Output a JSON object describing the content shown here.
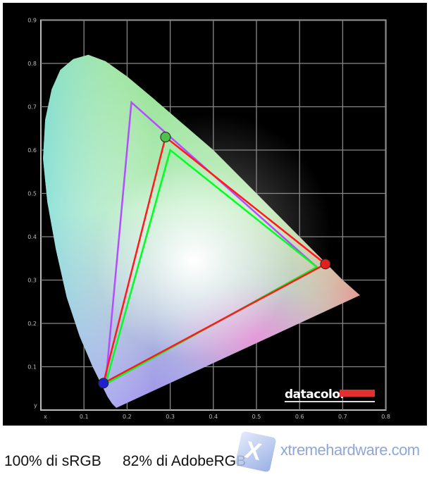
{
  "chart_data": {
    "type": "scatter",
    "title": "",
    "xlabel": "x",
    "ylabel": "y",
    "xlim": [
      0,
      0.8
    ],
    "ylim": [
      0,
      0.9
    ],
    "x_ticks": [
      "0.1",
      "0.2",
      "0.3",
      "0.4",
      "0.5",
      "0.6",
      "0.7",
      "0.8"
    ],
    "y_ticks": [
      "0.1",
      "0.2",
      "0.3",
      "0.4",
      "0.5",
      "0.6",
      "0.7",
      "0.8",
      "0.9"
    ],
    "grid": true,
    "background": "#000000",
    "series": [
      {
        "color": "#b44cff",
        "points": [
          [
            0.64,
            0.33
          ],
          [
            0.21,
            0.71
          ],
          [
            0.15,
            0.06
          ]
        ]
      },
      {
        "color": "#00ff20",
        "points": [
          [
            0.64,
            0.33
          ],
          [
            0.3,
            0.6
          ],
          [
            0.15,
            0.06
          ]
        ]
      },
      {
        "color": "#ff1a1a",
        "points": [
          [
            0.66,
            0.337
          ],
          [
            0.289,
            0.63
          ],
          [
            0.145,
            0.062
          ]
        ],
        "markers": [
          "#e02020",
          "#4ec04e",
          "#2020d0"
        ]
      }
    ]
  },
  "branding": {
    "logo_text": "datacolor",
    "logo_color": "#e03030"
  },
  "caption": {
    "srgb": "100% di sRGB",
    "adobergb": "82% di AdobeRGB"
  },
  "watermark": {
    "text": "xtremehardware.com"
  }
}
